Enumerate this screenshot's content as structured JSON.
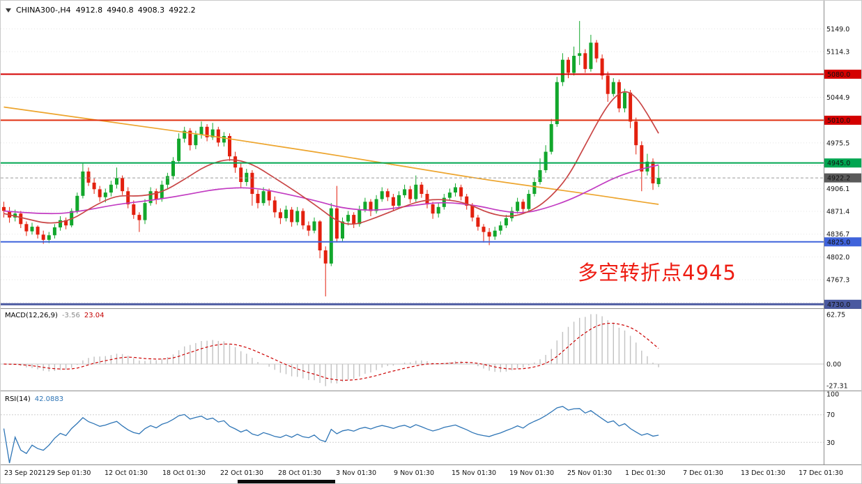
{
  "header": {
    "symbol": "CHINA300-,H4",
    "open": "4912.8",
    "high": "4940.8",
    "low": "4908.3",
    "close": "4922.2"
  },
  "annotation": {
    "text": "多空转折点4945"
  },
  "indicators_text": {
    "macd_name": "MACD(12,26,9)",
    "macd_main": "-3.56",
    "macd_signal": "23.04",
    "rsi_name": "RSI(14)",
    "rsi_value": "42.0883"
  },
  "colors": {
    "bull": "#12a72c",
    "bear": "#e3200e",
    "grid": "#e4e4e4",
    "macd_hist": "#c2c2c2",
    "macd_signal": "#cc0000",
    "rsi_line": "#2e75b6",
    "annotation": "#ee1c12",
    "current_price_line": "#9a9a9a",
    "separator": "#8c8c8c"
  },
  "chart_data": {
    "type": "candlestick",
    "title": "CHINA300-,H4",
    "timeframe": "H4",
    "last_bar": {
      "open": 4912.8,
      "high": 4940.8,
      "low": 4908.3,
      "close": 4922.2
    },
    "price_axis": {
      "ymin": 4725,
      "ymax": 5177,
      "ticks": [
        5149.0,
        5114.3,
        5079.6,
        5044.9,
        5010.2,
        4975.5,
        4940.8,
        4906.1,
        4871.4,
        4836.7,
        4802.0,
        4767.3,
        4732.6
      ],
      "current_price": 4922.2
    },
    "badges": [
      {
        "text": "5080.0",
        "price": 5080,
        "color": "#d40000"
      },
      {
        "text": "5010.0",
        "price": 5010,
        "color": "#d40000"
      },
      {
        "text": "4945.0",
        "price": 4945,
        "color": "#00a651"
      },
      {
        "text": "4922.2",
        "price": 4922.2,
        "color": "#5a5a5a"
      },
      {
        "text": "4825.0",
        "price": 4825,
        "color": "#3f63db"
      },
      {
        "text": "4730.0",
        "price": 4730,
        "color": "#4a59a0"
      }
    ],
    "hlines": [
      {
        "price": 5080,
        "color": "#d40000",
        "w": 2
      },
      {
        "price": 5010,
        "color": "#e03010",
        "w": 2
      },
      {
        "price": 4945,
        "color": "#00a651",
        "w": 2
      },
      {
        "price": 4825,
        "color": "#3f63db",
        "w": 2
      },
      {
        "price": 4730,
        "color": "#4a59a0",
        "w": 3
      }
    ],
    "x_labels": [
      "23 Sep 2021",
      "29 Sep 01:30",
      "12 Oct 01:30",
      "18 Oct 01:30",
      "22 Oct 01:30",
      "28 Oct 01:30",
      "3 Nov 01:30",
      "9 Nov 01:30",
      "15 Nov 01:30",
      "19 Nov 01:30",
      "25 Nov 01:30",
      "1 Dec 01:30",
      "7 Dec 01:30",
      "13 Dec 01:30",
      "17 Dec 01:30"
    ],
    "candles": [
      [
        4878,
        4886,
        4862,
        4872
      ],
      [
        4872,
        4878,
        4854,
        4862
      ],
      [
        4862,
        4874,
        4856,
        4868
      ],
      [
        4868,
        4872,
        4846,
        4852
      ],
      [
        4852,
        4856,
        4834,
        4841
      ],
      [
        4841,
        4854,
        4836,
        4848
      ],
      [
        4848,
        4850,
        4830,
        4836
      ],
      [
        4836,
        4842,
        4822,
        4828
      ],
      [
        4828,
        4840,
        4823,
        4835
      ],
      [
        4835,
        4852,
        4830,
        4847
      ],
      [
        4847,
        4864,
        4842,
        4858
      ],
      [
        4858,
        4862,
        4844,
        4850
      ],
      [
        4850,
        4876,
        4847,
        4872
      ],
      [
        4872,
        4900,
        4868,
        4895
      ],
      [
        4895,
        4944,
        4891,
        4932
      ],
      [
        4932,
        4938,
        4910,
        4915
      ],
      [
        4915,
        4922,
        4898,
        4905
      ],
      [
        4905,
        4910,
        4886,
        4893
      ],
      [
        4893,
        4906,
        4885,
        4900
      ],
      [
        4900,
        4918,
        4894,
        4912
      ],
      [
        4912,
        4938,
        4906,
        4922
      ],
      [
        4922,
        4926,
        4896,
        4902
      ],
      [
        4902,
        4908,
        4876,
        4882
      ],
      [
        4882,
        4888,
        4860,
        4866
      ],
      [
        4866,
        4870,
        4840,
        4858
      ],
      [
        4858,
        4890,
        4852,
        4884
      ],
      [
        4884,
        4908,
        4880,
        4902
      ],
      [
        4902,
        4906,
        4882,
        4890
      ],
      [
        4890,
        4918,
        4886,
        4912
      ],
      [
        4912,
        4930,
        4906,
        4925
      ],
      [
        4925,
        4954,
        4920,
        4948
      ],
      [
        4948,
        4990,
        4944,
        4982
      ],
      [
        4982,
        5000,
        4976,
        4994
      ],
      [
        4994,
        4998,
        4964,
        4972
      ],
      [
        4972,
        4994,
        4966,
        4988
      ],
      [
        4988,
        5008,
        4982,
        5000
      ],
      [
        5000,
        5004,
        4978,
        4984
      ],
      [
        4984,
        5006,
        4980,
        4996
      ],
      [
        4996,
        5000,
        4970,
        4976
      ],
      [
        4976,
        4992,
        4970,
        4986
      ],
      [
        4986,
        4990,
        4948,
        4955
      ],
      [
        4955,
        4962,
        4930,
        4938
      ],
      [
        4938,
        4944,
        4908,
        4916
      ],
      [
        4916,
        4936,
        4910,
        4930
      ],
      [
        4930,
        4934,
        4880,
        4898
      ],
      [
        4898,
        4904,
        4876,
        4884
      ],
      [
        4884,
        4908,
        4880,
        4902
      ],
      [
        4902,
        4906,
        4880,
        4888
      ],
      [
        4888,
        4894,
        4862,
        4870
      ],
      [
        4870,
        4876,
        4852,
        4861
      ],
      [
        4861,
        4880,
        4856,
        4874
      ],
      [
        4874,
        4878,
        4848,
        4855
      ],
      [
        4855,
        4878,
        4850,
        4872
      ],
      [
        4872,
        4876,
        4844,
        4850
      ],
      [
        4850,
        4856,
        4834,
        4842
      ],
      [
        4842,
        4862,
        4838,
        4856
      ],
      [
        4856,
        4858,
        4800,
        4812
      ],
      [
        4812,
        4818,
        4742,
        4792
      ],
      [
        4792,
        4884,
        4788,
        4876
      ],
      [
        4876,
        4910,
        4824,
        4830
      ],
      [
        4830,
        4862,
        4826,
        4856
      ],
      [
        4856,
        4872,
        4850,
        4866
      ],
      [
        4866,
        4870,
        4846,
        4852
      ],
      [
        4852,
        4880,
        4848,
        4874
      ],
      [
        4874,
        4892,
        4870,
        4886
      ],
      [
        4886,
        4890,
        4864,
        4872
      ],
      [
        4872,
        4896,
        4868,
        4890
      ],
      [
        4890,
        4908,
        4886,
        4902
      ],
      [
        4902,
        4906,
        4887,
        4893
      ],
      [
        4893,
        4898,
        4872,
        4880
      ],
      [
        4880,
        4902,
        4876,
        4896
      ],
      [
        4896,
        4912,
        4892,
        4905
      ],
      [
        4905,
        4910,
        4884,
        4890
      ],
      [
        4890,
        4926,
        4886,
        4912
      ],
      [
        4912,
        4916,
        4892,
        4898
      ],
      [
        4898,
        4904,
        4876,
        4882
      ],
      [
        4882,
        4886,
        4860,
        4868
      ],
      [
        4868,
        4884,
        4862,
        4878
      ],
      [
        4878,
        4898,
        4874,
        4892
      ],
      [
        4892,
        4906,
        4888,
        4900
      ],
      [
        4900,
        4914,
        4894,
        4908
      ],
      [
        4908,
        4912,
        4888,
        4894
      ],
      [
        4894,
        4898,
        4874,
        4880
      ],
      [
        4880,
        4884,
        4856,
        4862
      ],
      [
        4862,
        4866,
        4842,
        4848
      ],
      [
        4848,
        4852,
        4824,
        4840
      ],
      [
        4840,
        4846,
        4820,
        4833
      ],
      [
        4833,
        4848,
        4828,
        4842
      ],
      [
        4842,
        4856,
        4836,
        4850
      ],
      [
        4850,
        4866,
        4846,
        4861
      ],
      [
        4861,
        4878,
        4856,
        4872
      ],
      [
        4872,
        4892,
        4868,
        4886
      ],
      [
        4886,
        4890,
        4868,
        4875
      ],
      [
        4875,
        4904,
        4872,
        4898
      ],
      [
        4898,
        4922,
        4894,
        4916
      ],
      [
        4916,
        4952,
        4912,
        4934
      ],
      [
        4934,
        4972,
        4930,
        4962
      ],
      [
        4962,
        5012,
        4958,
        5004
      ],
      [
        5004,
        5076,
        5000,
        5068
      ],
      [
        5068,
        5112,
        5062,
        5102
      ],
      [
        5102,
        5106,
        5074,
        5082
      ],
      [
        5082,
        5122,
        5078,
        5108
      ],
      [
        5108,
        5161,
        5094,
        5112
      ],
      [
        5112,
        5118,
        5082,
        5088
      ],
      [
        5088,
        5140,
        5084,
        5128
      ],
      [
        5128,
        5132,
        5098,
        5104
      ],
      [
        5104,
        5110,
        5072,
        5078
      ],
      [
        5078,
        5084,
        5038,
        5050
      ],
      [
        5050,
        5074,
        5046,
        5068
      ],
      [
        5068,
        5072,
        5022,
        5028
      ],
      [
        5028,
        5058,
        5022,
        5052
      ],
      [
        5052,
        5056,
        4998,
        5008
      ],
      [
        5008,
        5014,
        4958,
        4972
      ],
      [
        4972,
        4978,
        4902,
        4932
      ],
      [
        4932,
        4959,
        4926,
        4947
      ],
      [
        4947,
        4952,
        4904,
        4914
      ],
      [
        4912.8,
        4940.8,
        4908.3,
        4922.2
      ]
    ],
    "moving_averages": {
      "orange": {
        "color": "#eda52e",
        "points": [
          [
            0,
            5030
          ],
          [
            10,
            5018
          ],
          [
            20,
            5006
          ],
          [
            30,
            4994
          ],
          [
            36,
            4987
          ],
          [
            45,
            4975
          ],
          [
            55,
            4962
          ],
          [
            65,
            4948
          ],
          [
            75,
            4934
          ],
          [
            85,
            4920
          ],
          [
            95,
            4908
          ],
          [
            105,
            4896
          ],
          [
            112,
            4887
          ],
          [
            116,
            4882
          ]
        ]
      },
      "magenta": {
        "color": "#c23cc2",
        "points": [
          [
            0,
            4872
          ],
          [
            8,
            4866
          ],
          [
            14,
            4872
          ],
          [
            20,
            4882
          ],
          [
            26,
            4888
          ],
          [
            32,
            4896
          ],
          [
            38,
            4906
          ],
          [
            44,
            4908
          ],
          [
            50,
            4898
          ],
          [
            56,
            4886
          ],
          [
            60,
            4876
          ],
          [
            66,
            4872
          ],
          [
            72,
            4880
          ],
          [
            78,
            4886
          ],
          [
            84,
            4880
          ],
          [
            88,
            4872
          ],
          [
            92,
            4868
          ],
          [
            96,
            4876
          ],
          [
            100,
            4888
          ],
          [
            104,
            4904
          ],
          [
            108,
            4922
          ],
          [
            112,
            4934
          ],
          [
            116,
            4942
          ]
        ]
      },
      "red": {
        "color": "#c94545",
        "points": [
          [
            0,
            4868
          ],
          [
            4,
            4860
          ],
          [
            8,
            4852
          ],
          [
            12,
            4858
          ],
          [
            16,
            4880
          ],
          [
            20,
            4896
          ],
          [
            24,
            4894
          ],
          [
            28,
            4900
          ],
          [
            32,
            4920
          ],
          [
            36,
            4942
          ],
          [
            40,
            4952
          ],
          [
            44,
            4944
          ],
          [
            48,
            4922
          ],
          [
            52,
            4900
          ],
          [
            56,
            4876
          ],
          [
            59,
            4856
          ],
          [
            62,
            4850
          ],
          [
            66,
            4862
          ],
          [
            70,
            4876
          ],
          [
            74,
            4888
          ],
          [
            78,
            4890
          ],
          [
            82,
            4884
          ],
          [
            86,
            4868
          ],
          [
            90,
            4862
          ],
          [
            94,
            4874
          ],
          [
            97,
            4894
          ],
          [
            100,
            4924
          ],
          [
            103,
            4972
          ],
          [
            106,
            5020
          ],
          [
            108,
            5044
          ],
          [
            110,
            5056
          ],
          [
            112,
            5046
          ],
          [
            114,
            5020
          ],
          [
            116,
            4990
          ]
        ]
      }
    },
    "macd": {
      "name": "MACD(12,26,9)",
      "fast": 12,
      "slow": 26,
      "signal": 9,
      "main": -3.56,
      "signal_value": 23.04,
      "axis": [
        "62.75",
        "0.00",
        "-27.31"
      ],
      "axis_values": [
        62.75,
        0,
        -27.31
      ]
    },
    "rsi": {
      "name": "RSI(14)",
      "period": 14,
      "value": 42.0883,
      "levels": [
        100,
        70,
        30
      ]
    }
  }
}
